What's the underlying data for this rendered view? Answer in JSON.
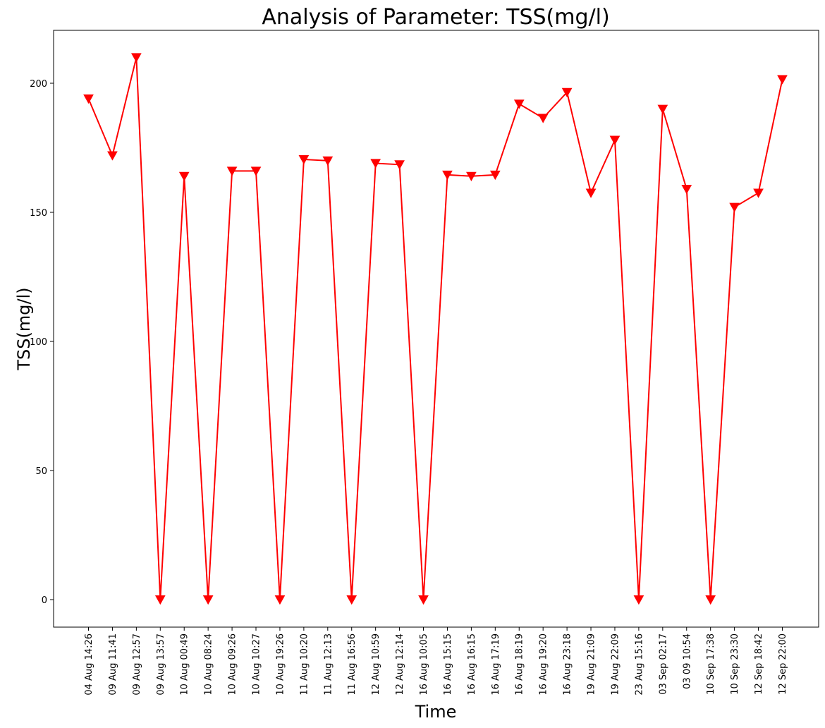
{
  "chart_data": {
    "type": "line",
    "title": "Analysis of Parameter: TSS(mg/l)",
    "xlabel": "Time",
    "ylabel": "TSS(mg/l)",
    "ylim": [
      -10,
      220
    ],
    "yticks": [
      0,
      50,
      100,
      150,
      200
    ],
    "grid": false,
    "legend": "none",
    "marker": "triangle-down",
    "color": "#ff0000",
    "categories": [
      "04 Aug 14:26",
      "09 Aug 11:41",
      "09 Aug 12:57",
      "09 Aug 13:57",
      "10 Aug 00:49",
      "10 Aug 08:24",
      "10 Aug 09:26",
      "10 Aug 10:27",
      "10 Aug 19:26",
      "11 Aug 10:20",
      "11 Aug 12:13",
      "11 Aug 16:56",
      "12 Aug 10:59",
      "12 Aug 12:14",
      "16 Aug 10:05",
      "16 Aug 15:15",
      "16 Aug 16:15",
      "16 Aug 17:19",
      "16 Aug 18:19",
      "16 Aug 19:20",
      "16 Aug 23:18",
      "19 Aug 21:09",
      "19 Aug 22:09",
      "23 Aug 15:16",
      "03 Sep 02:17",
      "03 09 10:54",
      "10 Sep 17:38",
      "10 Sep 23:30",
      "12 Sep 18:42",
      "12 Sep 22:00"
    ],
    "series": [
      {
        "values": [
          194,
          172,
          210,
          0,
          164,
          0,
          166,
          166,
          0,
          170.5,
          170,
          0,
          169,
          168.5,
          0,
          164.5,
          164,
          164.5,
          192,
          186.5,
          196.5,
          157.5,
          178,
          0,
          190,
          159,
          0,
          152,
          157.5,
          201.5
        ]
      }
    ]
  }
}
